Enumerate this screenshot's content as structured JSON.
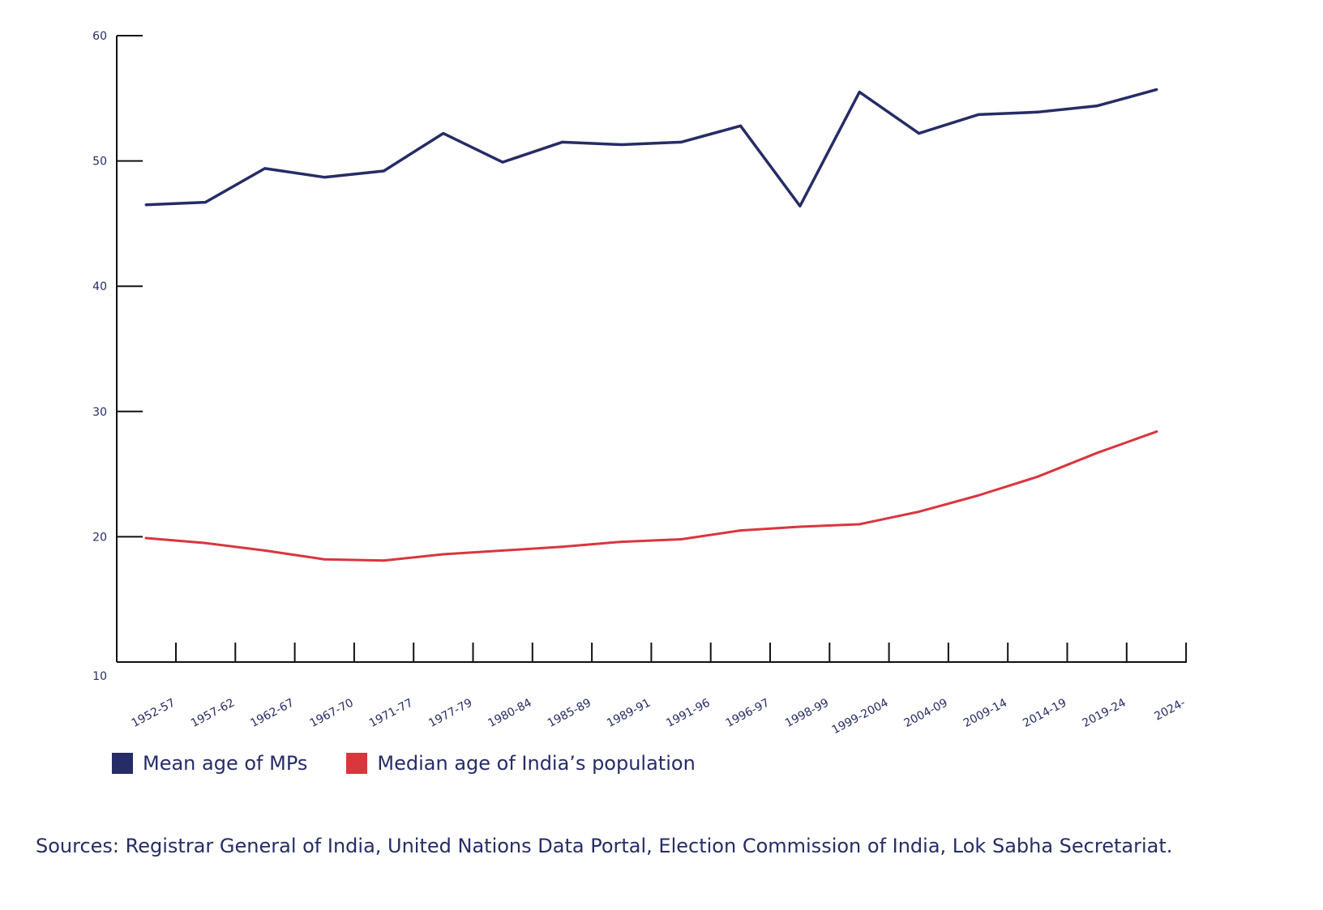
{
  "chart_data": {
    "type": "line",
    "categories": [
      "1952-57",
      "1957-62",
      "1962-67",
      "1967-70",
      "1971-77",
      "1977-79",
      "1980-84",
      "1985-89",
      "1989-91",
      "1991-96",
      "1996-97",
      "1998-99",
      "1999-2004",
      "2004-09",
      "2009-14",
      "2014-19",
      "2019-24",
      "2024-"
    ],
    "series": [
      {
        "name": "Mean age of MPs",
        "color": "#262c66",
        "values": [
          46.5,
          46.7,
          49.4,
          48.7,
          49.2,
          52.2,
          49.9,
          51.5,
          51.3,
          51.5,
          52.8,
          46.4,
          55.5,
          52.2,
          53.7,
          53.9,
          54.4,
          55.7
        ]
      },
      {
        "name": "Median age of India’s population",
        "color": "#d9363e",
        "values": [
          19.9,
          19.5,
          18.9,
          18.2,
          18.1,
          18.6,
          18.9,
          19.2,
          19.6,
          19.8,
          20.5,
          20.8,
          21.0,
          22.0,
          23.3,
          24.8,
          26.7,
          28.4
        ]
      }
    ],
    "ylim": [
      10,
      60
    ],
    "yticks": [
      "10",
      "20",
      "30",
      "40",
      "50",
      "60"
    ],
    "grid": false,
    "legend": "bottom-left"
  },
  "source": "Sources: Registrar General of India, United Nations Data Portal, Election Commission of India, Lok Sabha Secretariat."
}
